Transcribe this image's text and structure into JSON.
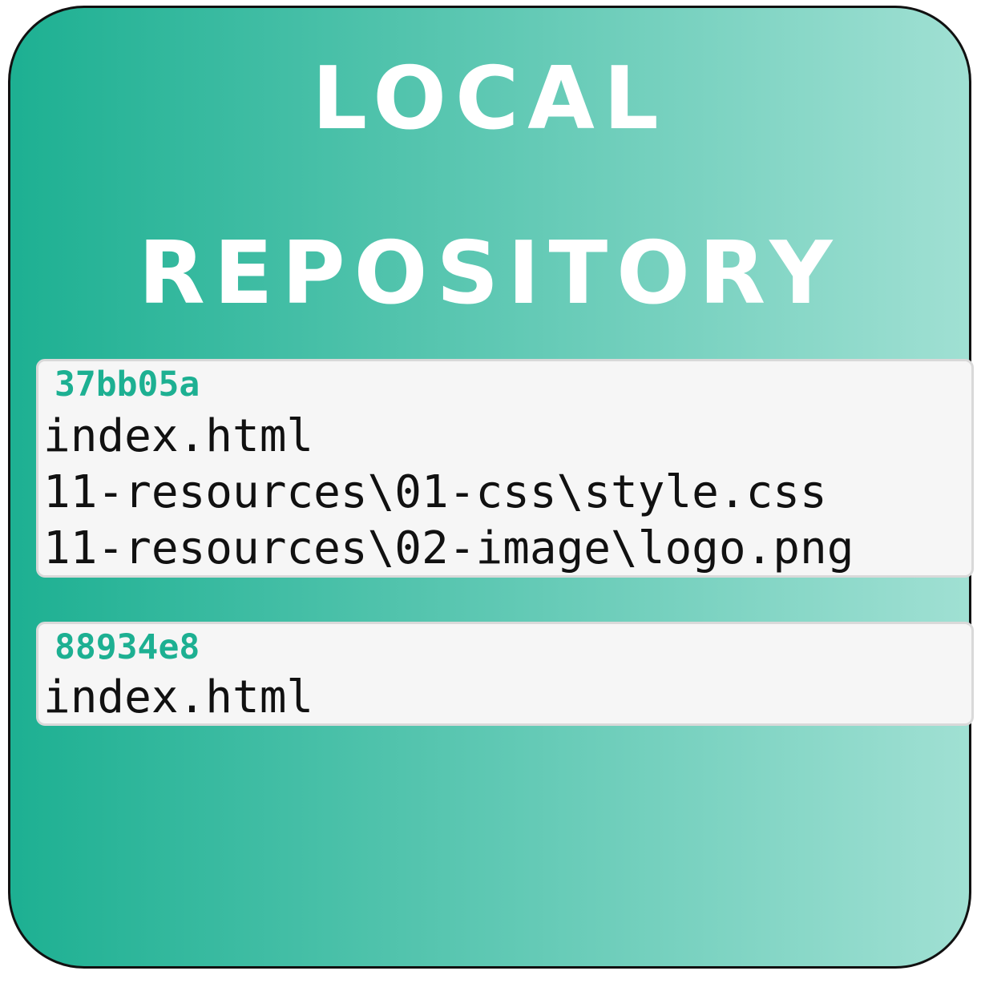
{
  "colors": {
    "gradient_start": "#1db092",
    "gradient_end": "#a0e0d3",
    "hash_color": "#1db092",
    "title_color": "#ffffff",
    "box_background": "#f6f6f6"
  },
  "title": {
    "line1": "LOCAL",
    "line2": "REPOSITORY"
  },
  "commits": [
    {
      "hash": "37bb05a",
      "files": [
        "index.html",
        "11-resources\\01-css\\style.css",
        "11-resources\\02-image\\logo.png"
      ]
    },
    {
      "hash": "88934e8",
      "files": [
        "index.html"
      ]
    }
  ]
}
